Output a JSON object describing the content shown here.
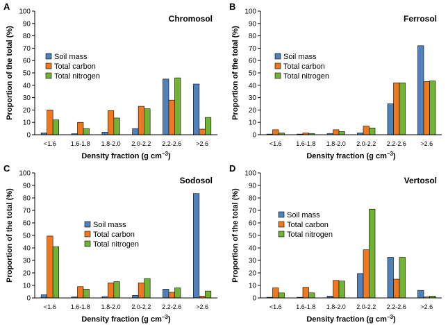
{
  "figure": {
    "legend_labels": [
      "Soil mass",
      "Total carbon",
      "Total nitrogen"
    ],
    "colors": [
      "#4f81bd",
      "#f0781e",
      "#72b333"
    ],
    "ylabel": "Proportion of the total (%)",
    "xlabel_main": "Density fraction (g cm",
    "xlabel_sup": "−3",
    "xlabel_end": ")"
  },
  "chart_data": [
    {
      "type": "bar",
      "panel_letter": "A",
      "title": "Chromosol",
      "categories": [
        "<1.6",
        "1.6-1.8",
        "1.8-2.0",
        "2.0-2.2",
        "2.2-2.6",
        ">2.6"
      ],
      "ylim": [
        0,
        100
      ],
      "yticks": [
        0,
        10,
        20,
        30,
        40,
        50,
        60,
        70,
        80,
        90,
        100
      ],
      "xlabel": "Density fraction (g cm-3)",
      "ylabel": "Proportion of the total (%)",
      "legend_position": "left",
      "series": [
        {
          "name": "Soil mass",
          "values": [
            1.5,
            0.8,
            2,
            5,
            45,
            41
          ]
        },
        {
          "name": "Total carbon",
          "values": [
            20,
            10,
            19.5,
            23,
            28,
            4.5
          ]
        },
        {
          "name": "Total nitrogen",
          "values": [
            12,
            5,
            13.5,
            21,
            46,
            14
          ]
        }
      ]
    },
    {
      "type": "bar",
      "panel_letter": "B",
      "title": "Ferrosol",
      "categories": [
        "<1.6",
        "1.6-1.8",
        "1.8-2.0",
        "2.0-2.2",
        "2.2-2.6",
        ">2.6"
      ],
      "ylim": [
        0,
        100
      ],
      "yticks": [
        0,
        10,
        20,
        30,
        40,
        50,
        60,
        70,
        80,
        90,
        100
      ],
      "xlabel": "Density fraction (g cm-3)",
      "ylabel": "Proportion of the total (%)",
      "legend_position": "left",
      "series": [
        {
          "name": "Soil mass",
          "values": [
            0.5,
            0.5,
            1,
            1.5,
            25,
            72
          ]
        },
        {
          "name": "Total carbon",
          "values": [
            4,
            1.5,
            4,
            7,
            42,
            43
          ]
        },
        {
          "name": "Total nitrogen",
          "values": [
            1.5,
            1,
            2.5,
            5.5,
            42,
            43.5
          ]
        }
      ]
    },
    {
      "type": "bar",
      "panel_letter": "C",
      "title": "Sodosol",
      "categories": [
        "<1.6",
        "1.6-1.8",
        "1.8-2.0",
        "2.0-2.2",
        "2.2-2.6",
        ">2.6"
      ],
      "ylim": [
        0,
        100
      ],
      "yticks": [
        0,
        10,
        20,
        30,
        40,
        50,
        60,
        70,
        80,
        90,
        100
      ],
      "xlabel": "Density fraction (g cm-3)",
      "ylabel": "Proportion of the total (%)",
      "legend_position": "center",
      "series": [
        {
          "name": "Soil mass",
          "values": [
            2.5,
            0.8,
            1,
            2,
            7,
            83.5
          ]
        },
        {
          "name": "Total carbon",
          "values": [
            49.5,
            9,
            12,
            12,
            4.5,
            1.5
          ]
        },
        {
          "name": "Total nitrogen",
          "values": [
            41,
            7,
            13,
            15.5,
            8,
            5.5
          ]
        }
      ]
    },
    {
      "type": "bar",
      "panel_letter": "D",
      "title": "Vertosol",
      "categories": [
        "<1.6",
        "1.6-1.8",
        "1.8-2.0",
        "2.0-2.2",
        "2.2-2.6",
        ">2.6"
      ],
      "ylim": [
        0,
        100
      ],
      "yticks": [
        0,
        10,
        20,
        30,
        40,
        50,
        60,
        70,
        80,
        90,
        100
      ],
      "xlabel": "Density fraction (g cm-3)",
      "ylabel": "Proportion of the total (%)",
      "legend_position": "left",
      "series": [
        {
          "name": "Soil mass",
          "values": [
            0.5,
            0.5,
            1.5,
            19.5,
            32.5,
            6
          ]
        },
        {
          "name": "Total carbon",
          "values": [
            8,
            8.5,
            14,
            38.5,
            15,
            0.8
          ]
        },
        {
          "name": "Total nitrogen",
          "values": [
            4,
            4,
            13.5,
            71,
            32.5,
            1.5
          ]
        }
      ]
    }
  ]
}
